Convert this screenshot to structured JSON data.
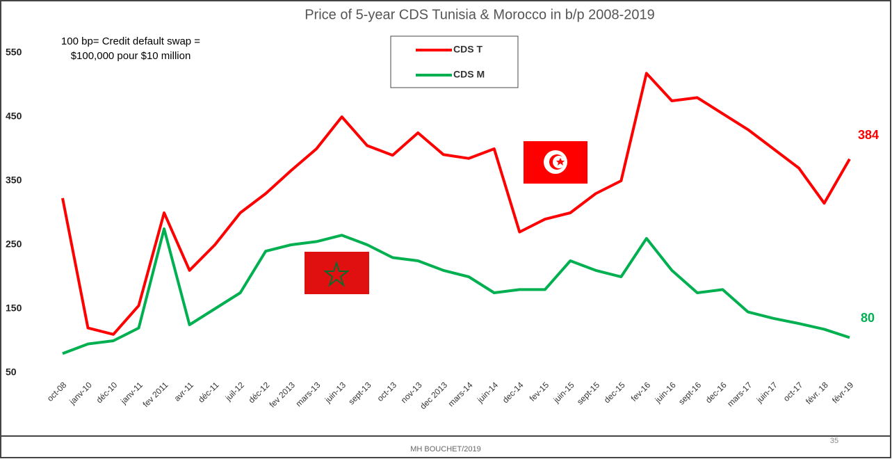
{
  "chart_data": {
    "type": "line",
    "title": "Price of 5-year CDS Tunisia & Morocco in b/p 2008-2019",
    "note": [
      "100 bp= Credit default swap =",
      "$100,000 pour $10 million"
    ],
    "categories": [
      "oct-08",
      "janv-10",
      "déc-10",
      "janv-11",
      "fev 2011",
      "avr-11",
      "déc-11",
      "juil-12",
      "déc-12",
      "fev 2013",
      "mars-13",
      "juin-13",
      "sept-13",
      "oct-13",
      "nov-13",
      "dec 2013",
      "mars-14",
      "juin-14",
      "dec-14",
      "fev-15",
      "juin-15",
      "sept-15",
      "dec-15",
      "fev-16",
      "juin-16",
      "sept-16",
      "dec-16",
      "mars-17",
      "juin-17",
      "oct-17",
      "févr. 18",
      "févr-19"
    ],
    "series": [
      {
        "name": "CDS T",
        "color": "#ff0000",
        "values": [
          323,
          120,
          110,
          155,
          300,
          210,
          250,
          300,
          330,
          366,
          400,
          450,
          405,
          390,
          425,
          391,
          385,
          400,
          270,
          290,
          300,
          330,
          350,
          518,
          475,
          480,
          455,
          430,
          400,
          370,
          315,
          384
        ]
      },
      {
        "name": "CDS M",
        "color": "#00b050",
        "values": [
          80,
          95,
          100,
          120,
          275,
          125,
          150,
          175,
          240,
          250,
          255,
          265,
          250,
          230,
          225,
          210,
          200,
          175,
          180,
          180,
          225,
          210,
          200,
          260,
          210,
          175,
          180,
          145,
          135,
          127,
          118,
          105
        ]
      }
    ],
    "annotations": [
      "384",
      "80"
    ],
    "ylim": [
      50,
      550
    ],
    "yticks": [
      50,
      150,
      250,
      350,
      450,
      550
    ],
    "grid": false,
    "footer": "MH BOUCHET/2019",
    "page_number": "35"
  }
}
